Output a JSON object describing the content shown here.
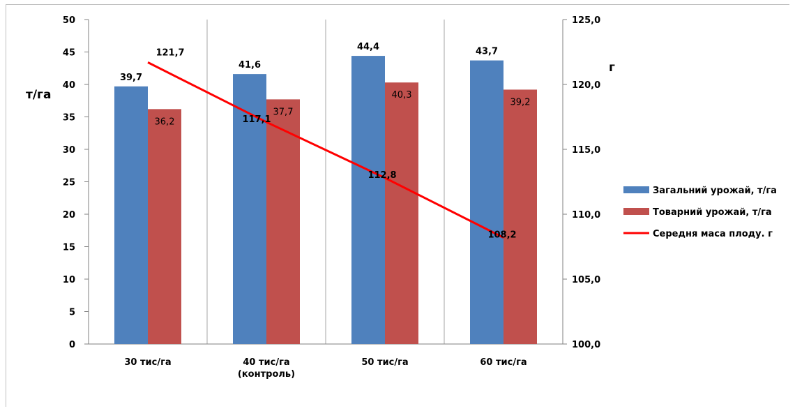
{
  "chart_data": {
    "type": "bar",
    "categories": [
      "30 тис/га",
      "40 тис/га\n(контроль)",
      "50 тис/га",
      "60 тис/га"
    ],
    "series": [
      {
        "name": "Загальний урожай, т/га",
        "type": "bar",
        "axis": "left",
        "color": "#4f81bd",
        "values": [
          39.7,
          41.6,
          44.4,
          43.7
        ],
        "labels": [
          "39,7",
          "41,6",
          "44,4",
          "43,7"
        ]
      },
      {
        "name": "Товарний урожай, т/га",
        "type": "bar",
        "axis": "left",
        "color": "#c0504d",
        "values": [
          36.2,
          37.7,
          40.3,
          39.2
        ],
        "labels": [
          "36,2",
          "37,7",
          "40,3",
          "39,2"
        ]
      },
      {
        "name": "Середня маса плоду. г",
        "type": "line",
        "axis": "right",
        "color": "#ff0000",
        "values": [
          121.7,
          117.1,
          112.8,
          108.2
        ],
        "labels": [
          "121,7",
          "117,1",
          "112,8",
          "108,2"
        ]
      }
    ],
    "ylabel": "т/га",
    "y2label": "г",
    "ylim": [
      0,
      50
    ],
    "y2lim": [
      100,
      125
    ],
    "yticks": [
      "0",
      "5",
      "10",
      "15",
      "20",
      "25",
      "30",
      "35",
      "40",
      "45",
      "50"
    ],
    "y2ticks": [
      "100,0",
      "105,0",
      "110,0",
      "115,0",
      "120,0",
      "125,0"
    ],
    "grid": "vertical",
    "legend": "right"
  }
}
